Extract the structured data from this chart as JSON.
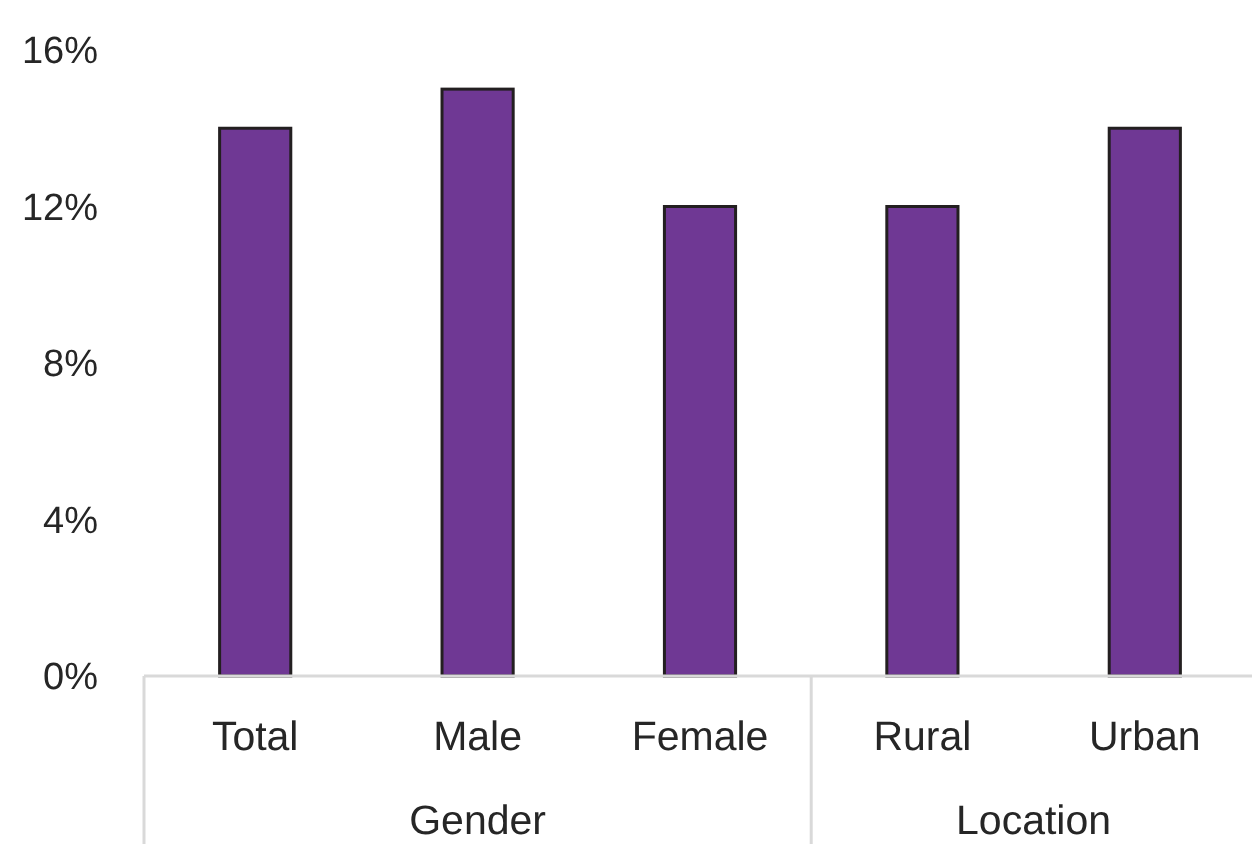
{
  "chart_data": {
    "type": "bar",
    "categories": [
      "Total",
      "Male",
      "Female",
      "Rural",
      "Urban"
    ],
    "values": [
      14,
      15,
      12,
      12,
      14
    ],
    "color": "#6f3894",
    "ylim": [
      0,
      16
    ],
    "yticks": [
      {
        "value": 0,
        "label": "0%"
      },
      {
        "value": 4,
        "label": "4%"
      },
      {
        "value": 8,
        "label": "8%"
      },
      {
        "value": 12,
        "label": "12%"
      },
      {
        "value": 16,
        "label": "16%"
      }
    ],
    "grid": false,
    "annotations": [
      "Gender",
      "Location"
    ]
  }
}
